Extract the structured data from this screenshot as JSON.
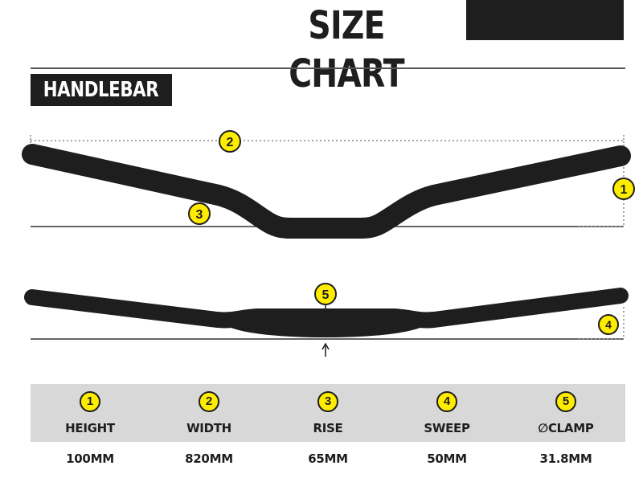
{
  "header": {
    "title": "SIZE CHART",
    "accent_color": "#1e1e1e"
  },
  "section": {
    "label": "HANDLEBAR"
  },
  "callouts": {
    "height": "1",
    "width": "2",
    "rise": "3",
    "sweep": "4",
    "clamp": "5"
  },
  "colors": {
    "badge_fill": "#ffed00",
    "bar": "#1e1e1e",
    "table_shade": "#d8d8d8"
  },
  "specs": [
    {
      "number": "1",
      "label": "HEIGHT",
      "value": "100MM"
    },
    {
      "number": "2",
      "label": "WIDTH",
      "value": "820MM"
    },
    {
      "number": "3",
      "label": "RISE",
      "value": "65MM"
    },
    {
      "number": "4",
      "label": "SWEEP",
      "value": "50MM"
    },
    {
      "number": "5",
      "label": "∅CLAMP",
      "value": "31.8MM"
    }
  ]
}
